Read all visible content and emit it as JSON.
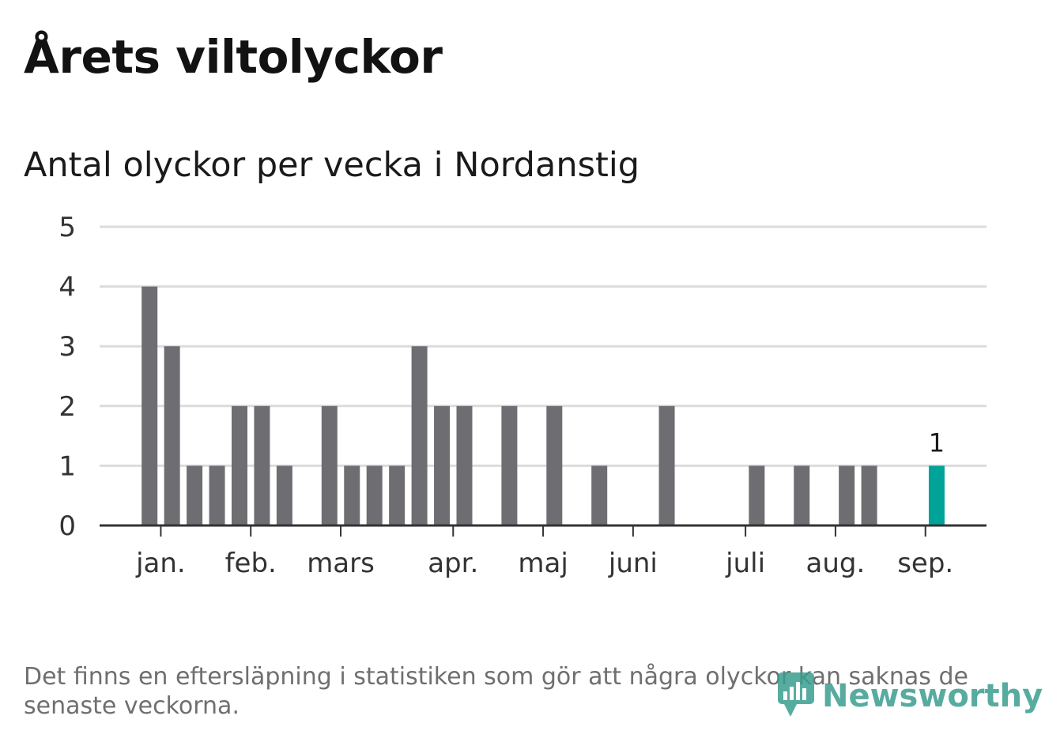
{
  "title": "Årets viltolyckor",
  "subtitle": "Antal olyckor per vecka i Nordanstig",
  "footnote": "Det finns en eftersläpning i statistiken som gör att några olyckor kan saknas de senaste veckorna.",
  "logo": {
    "text": "Newsworthy",
    "icon": "bar-chart-speech-bubble-icon"
  },
  "colors": {
    "bar": "#6e6d72",
    "highlight": "#00a398",
    "grid": "#dcdcdc",
    "axis": "#333333",
    "logo": "#3a9d8f"
  },
  "chart_data": {
    "type": "bar",
    "x_unit": "week",
    "x": [
      1,
      2,
      3,
      4,
      5,
      6,
      7,
      8,
      9,
      10,
      11,
      12,
      13,
      14,
      15,
      16,
      17,
      18,
      19,
      20,
      21,
      22,
      23,
      24,
      25,
      26,
      27,
      28,
      29,
      30,
      31,
      32,
      33,
      34,
      35,
      36,
      37
    ],
    "values": [
      4,
      3,
      1,
      1,
      2,
      2,
      1,
      0,
      2,
      1,
      1,
      1,
      3,
      2,
      2,
      0,
      2,
      0,
      2,
      0,
      1,
      0,
      0,
      2,
      0,
      0,
      0,
      1,
      0,
      1,
      0,
      1,
      1,
      0,
      0,
      1,
      0
    ],
    "highlight_index": 35,
    "highlight_label": "1",
    "ylim": [
      0,
      5
    ],
    "y_ticks": [
      0,
      1,
      2,
      3,
      4,
      5
    ],
    "x_tick_labels": [
      {
        "label": "jan.",
        "week": 1.5
      },
      {
        "label": "feb.",
        "week": 5.5
      },
      {
        "label": "mars",
        "week": 9.5
      },
      {
        "label": "apr.",
        "week": 14.5
      },
      {
        "label": "maj",
        "week": 18.5
      },
      {
        "label": "juni",
        "week": 22.5
      },
      {
        "label": "juli",
        "week": 27.5
      },
      {
        "label": "aug.",
        "week": 31.5
      },
      {
        "label": "sep.",
        "week": 35.5
      }
    ],
    "grid": true,
    "legend": "none"
  }
}
